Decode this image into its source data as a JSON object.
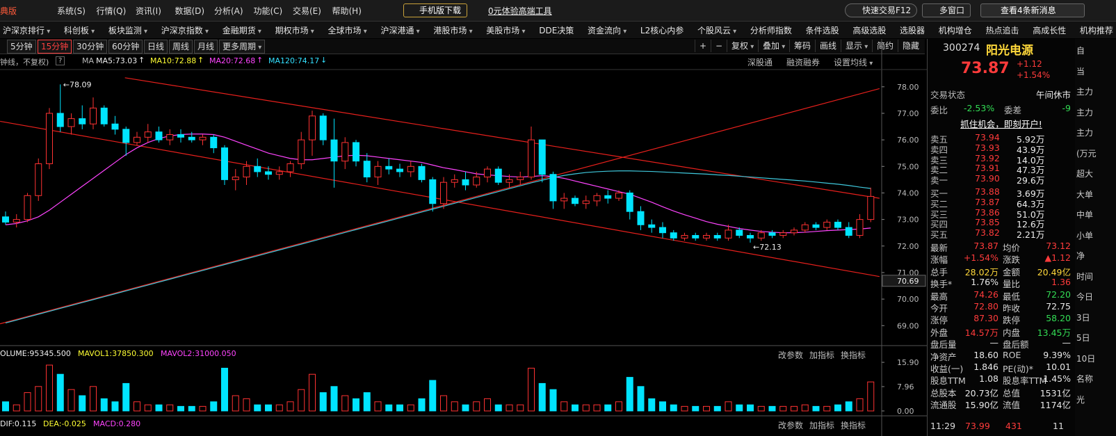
{
  "topbar": {
    "brand": "典版",
    "menus": [
      "系统(S)",
      "行情(Q)",
      "资讯(I)",
      "数据(D)",
      "分析(A)",
      "功能(C)",
      "交易(E)",
      "帮助(H)"
    ],
    "mobile": "手机版下载",
    "promo": "0元体验高端工具",
    "quick_trade": "快速交易F12",
    "multi_window": "多窗口",
    "messages": "查看4条新消息"
  },
  "nav": [
    {
      "text": "沪深京排行",
      "menu": true
    },
    {
      "text": "科创板",
      "menu": true
    },
    {
      "text": "板块监测",
      "menu": true
    },
    {
      "text": "沪深京指数",
      "menu": true
    },
    {
      "text": "金融期货",
      "menu": true
    },
    {
      "text": "期权市场",
      "menu": true
    },
    {
      "text": "全球市场",
      "menu": true
    },
    {
      "text": "沪深港通",
      "menu": true
    },
    {
      "text": "港股市场",
      "menu": true
    },
    {
      "text": "美股市场",
      "menu": true
    },
    {
      "text": "DDE决策",
      "menu": false
    },
    {
      "text": "资金流向",
      "menu": true
    },
    {
      "text": "L2核心内参",
      "menu": false
    },
    {
      "text": "个股风云",
      "menu": true
    },
    {
      "text": "分析师指数",
      "menu": false
    },
    {
      "text": "条件选股",
      "menu": false
    },
    {
      "text": "高级选股",
      "menu": false
    },
    {
      "text": "选股器",
      "menu": false
    },
    {
      "text": "机构增仓",
      "menu": false
    },
    {
      "text": "热点追击",
      "menu": false
    },
    {
      "text": "高成长性",
      "menu": false
    },
    {
      "text": "机构推荐",
      "menu": false
    }
  ],
  "toolbar": {
    "periods": [
      {
        "text": "5分钟",
        "menu": false
      },
      {
        "text": "15分钟",
        "menu": false
      },
      {
        "text": "30分钟",
        "menu": false
      },
      {
        "text": "60分钟",
        "menu": false
      },
      {
        "text": "日线",
        "menu": false
      },
      {
        "text": "周线",
        "menu": false
      },
      {
        "text": "月线",
        "menu": false
      },
      {
        "text": "更多周期",
        "menu": true
      }
    ],
    "active": 1,
    "tools": [
      {
        "text": "+",
        "menu": false
      },
      {
        "text": "−",
        "menu": false
      },
      {
        "text": "复权",
        "menu": true
      },
      {
        "text": "叠加",
        "menu": true
      },
      {
        "text": "筹码",
        "menu": false
      },
      {
        "text": "画线",
        "menu": false
      },
      {
        "text": "显示",
        "menu": true
      },
      {
        "text": "简约",
        "menu": false
      },
      {
        "text": "隐藏",
        "menu": false
      }
    ]
  },
  "indicator_bar": {
    "mode": "钟线，不复权)",
    "help": "?",
    "ma": "MA",
    "items": [
      {
        "text": "MA5:73.03",
        "color": "#f0f0f0",
        "arrow": "↑"
      },
      {
        "text": "MA10:72.88",
        "color": "#ffff33",
        "arrow": "↑"
      },
      {
        "text": "MA20:72.68",
        "color": "#ff44ff",
        "arrow": "↑"
      },
      {
        "text": "MA120:74.17",
        "color": "#33e0ff",
        "arrow": "↓"
      }
    ],
    "links": [
      {
        "text": "深股通",
        "menu": false
      },
      {
        "text": "融资融券",
        "menu": false
      },
      {
        "text": "设置均线",
        "menu": true
      }
    ]
  },
  "volume_bar": {
    "items": [
      {
        "text": "OLUME:95345.500",
        "color": "#f0f0f0"
      },
      {
        "text": "MAVOL1:37850.300",
        "color": "#ffff33"
      },
      {
        "text": "MAVOL2:31000.050",
        "color": "#ff44ff"
      }
    ],
    "links": [
      "改参数",
      "加指标",
      "换指标"
    ]
  },
  "macd_bar": {
    "items": [
      {
        "text": "DIF:0.115",
        "color": "#f0f0f0"
      },
      {
        "text": "DEA:-0.025",
        "color": "#ffff33"
      },
      {
        "text": "MACD:0.280",
        "color": "#ff44ff"
      }
    ],
    "links": [
      "改参数",
      "加指标",
      "换指标"
    ]
  },
  "chart_data": [
    {
      "type": "candlestick",
      "up_color": "#ff3232",
      "down_color": "#00e4ff",
      "ylim": [
        68.3,
        78.65
      ],
      "yticks": [
        {
          "value": 78,
          "label": "78.00"
        },
        {
          "value": 77,
          "label": "77.00"
        },
        {
          "value": 76,
          "label": "76.00"
        },
        {
          "value": 75,
          "label": "75.00"
        },
        {
          "value": 74,
          "label": "74.00"
        },
        {
          "value": 73,
          "label": "73.00"
        },
        {
          "value": 72,
          "label": "72.00"
        },
        {
          "value": 71,
          "label": "71.00"
        },
        {
          "value": 70,
          "label": "70.00"
        },
        {
          "value": 69,
          "label": "69.00"
        }
      ],
      "marker": 70.69,
      "ohlc": [
        [
          73.1,
          73.3,
          72.8,
          72.9
        ],
        [
          72.9,
          73.2,
          72.7,
          73.0
        ],
        [
          73.0,
          74.0,
          72.9,
          73.9
        ],
        [
          73.9,
          75.3,
          73.7,
          75.1
        ],
        [
          75.1,
          77.2,
          74.9,
          77.0
        ],
        [
          77.0,
          78.09,
          76.3,
          76.5
        ],
        [
          76.5,
          77.0,
          76.2,
          76.8
        ],
        [
          76.8,
          77.3,
          76.4,
          76.6
        ],
        [
          76.6,
          77.6,
          76.4,
          77.2
        ],
        [
          77.2,
          77.3,
          76.5,
          76.6
        ],
        [
          76.6,
          76.9,
          76.2,
          76.4
        ],
        [
          76.4,
          76.5,
          75.4,
          75.9
        ],
        [
          75.9,
          76.3,
          75.8,
          76.1
        ],
        [
          76.1,
          76.6,
          75.9,
          76.3
        ],
        [
          76.3,
          76.5,
          75.9,
          76.0
        ],
        [
          76.0,
          76.4,
          75.8,
          76.2
        ],
        [
          76.2,
          76.4,
          75.9,
          76.1
        ],
        [
          76.1,
          76.3,
          75.9,
          76.0
        ],
        [
          76.0,
          76.2,
          75.8,
          76.1
        ],
        [
          76.1,
          76.2,
          75.5,
          75.7
        ],
        [
          75.7,
          75.8,
          74.3,
          74.5
        ],
        [
          74.5,
          74.9,
          74.1,
          74.6
        ],
        [
          74.6,
          75.2,
          74.3,
          75.0
        ],
        [
          75.0,
          75.3,
          74.6,
          74.8
        ],
        [
          74.8,
          75.0,
          74.5,
          74.7
        ],
        [
          74.7,
          75.0,
          74.5,
          74.8
        ],
        [
          74.8,
          75.2,
          74.6,
          75.1
        ],
        [
          75.1,
          76.3,
          74.9,
          76.0
        ],
        [
          76.0,
          77.1,
          75.4,
          76.9
        ],
        [
          76.9,
          77.0,
          75.8,
          76.0
        ],
        [
          76.0,
          76.8,
          74.2,
          75.2
        ],
        [
          75.2,
          76.1,
          74.9,
          75.9
        ],
        [
          75.9,
          76.0,
          75.0,
          75.2
        ],
        [
          75.2,
          75.5,
          74.4,
          74.6
        ],
        [
          74.6,
          75.2,
          74.3,
          75.0
        ],
        [
          75.0,
          75.3,
          74.7,
          74.9
        ],
        [
          74.9,
          75.1,
          74.6,
          74.8
        ],
        [
          74.8,
          75.2,
          74.6,
          75.0
        ],
        [
          75.0,
          75.1,
          74.4,
          74.5
        ],
        [
          74.5,
          74.6,
          73.3,
          73.6
        ],
        [
          73.6,
          74.6,
          73.4,
          74.4
        ],
        [
          74.4,
          74.7,
          74.2,
          74.5
        ],
        [
          74.5,
          74.8,
          74.1,
          74.3
        ],
        [
          74.3,
          74.8,
          74.2,
          74.6
        ],
        [
          74.6,
          75.0,
          74.4,
          74.9
        ],
        [
          74.9,
          75.0,
          74.3,
          74.4
        ],
        [
          74.4,
          74.7,
          74.2,
          74.5
        ],
        [
          74.5,
          74.8,
          74.3,
          74.6
        ],
        [
          74.6,
          76.5,
          74.5,
          76.0
        ],
        [
          76.0,
          76.0,
          74.4,
          74.7
        ],
        [
          74.7,
          74.8,
          73.4,
          73.7
        ],
        [
          73.7,
          74.0,
          73.4,
          73.8
        ],
        [
          73.8,
          73.9,
          73.5,
          73.6
        ],
        [
          73.6,
          73.9,
          73.4,
          73.7
        ],
        [
          73.7,
          74.0,
          73.5,
          73.9
        ],
        [
          73.9,
          74.1,
          73.6,
          73.8
        ],
        [
          73.8,
          74.1,
          73.7,
          74.0
        ],
        [
          74.0,
          74.1,
          73.0,
          73.3
        ],
        [
          73.3,
          73.5,
          72.6,
          72.8
        ],
        [
          72.8,
          73.0,
          72.5,
          72.7
        ],
        [
          72.7,
          72.9,
          72.3,
          72.5
        ],
        [
          72.5,
          72.6,
          72.2,
          72.3
        ],
        [
          72.3,
          72.5,
          72.2,
          72.4
        ],
        [
          72.4,
          72.5,
          72.2,
          72.3
        ],
        [
          72.3,
          72.5,
          72.2,
          72.4
        ],
        [
          72.4,
          72.5,
          72.2,
          72.3
        ],
        [
          72.3,
          72.8,
          72.2,
          72.6
        ],
        [
          72.6,
          72.7,
          72.3,
          72.4
        ],
        [
          72.4,
          72.5,
          72.13,
          72.3
        ],
        [
          72.3,
          72.6,
          72.2,
          72.5
        ],
        [
          72.5,
          72.6,
          72.3,
          72.4
        ],
        [
          72.4,
          72.6,
          72.3,
          72.5
        ],
        [
          72.5,
          72.7,
          72.4,
          72.6
        ],
        [
          72.6,
          72.9,
          72.5,
          72.8
        ],
        [
          72.8,
          72.9,
          72.6,
          72.7
        ],
        [
          72.7,
          73.0,
          72.6,
          72.9
        ],
        [
          72.9,
          73.0,
          72.6,
          72.7
        ],
        [
          72.7,
          72.9,
          72.3,
          72.4
        ],
        [
          72.4,
          73.2,
          72.3,
          73.0
        ],
        [
          73.0,
          74.2,
          72.9,
          73.87
        ]
      ],
      "series": [
        {
          "color": "#ff44ff",
          "values": [
            72.8,
            72.85,
            72.95,
            73.1,
            73.35,
            73.65,
            73.95,
            74.25,
            74.55,
            74.85,
            75.15,
            75.45,
            75.7,
            75.9,
            76.05,
            76.15,
            76.2,
            76.22,
            76.22,
            76.2,
            76.1,
            75.95,
            75.8,
            75.65,
            75.5,
            75.4,
            75.3,
            75.25,
            75.25,
            75.3,
            75.35,
            75.4,
            75.42,
            75.4,
            75.35,
            75.3,
            75.25,
            75.2,
            75.15,
            75.05,
            74.95,
            74.88,
            74.8,
            74.72,
            74.68,
            74.65,
            74.62,
            74.6,
            74.62,
            74.65,
            74.62,
            74.55,
            74.45,
            74.35,
            74.25,
            74.15,
            74.05,
            73.95,
            73.8,
            73.65,
            73.48,
            73.32,
            73.18,
            73.05,
            72.92,
            72.82,
            72.74,
            72.66,
            72.6,
            72.55,
            72.52,
            72.5,
            72.5,
            72.52,
            72.55,
            72.58,
            72.6,
            72.62,
            72.64,
            72.68
          ]
        },
        {
          "color": "#3fc8dc",
          "values": [
            69.1,
            69.21,
            69.32,
            69.43,
            69.54,
            69.65,
            69.76,
            69.87,
            69.98,
            70.09,
            70.2,
            70.31,
            70.42,
            70.53,
            70.64,
            70.75,
            70.86,
            70.97,
            71.08,
            71.19,
            71.3,
            71.41,
            71.52,
            71.63,
            71.74,
            71.85,
            71.96,
            72.07,
            72.18,
            72.29,
            72.4,
            72.51,
            72.62,
            72.73,
            72.84,
            72.95,
            73.06,
            73.17,
            73.28,
            73.39,
            73.5,
            73.61,
            73.72,
            73.83,
            73.94,
            74.05,
            74.16,
            74.27,
            74.38,
            74.48,
            74.58,
            74.66,
            74.72,
            74.77,
            74.8,
            74.82,
            74.83,
            74.83,
            74.82,
            74.81,
            74.79,
            74.77,
            74.75,
            74.73,
            74.71,
            74.68,
            74.66,
            74.63,
            74.6,
            74.57,
            74.54,
            74.51,
            74.48,
            74.45,
            74.41,
            74.37,
            74.33,
            74.28,
            74.22,
            74.17
          ]
        }
      ],
      "trendline_color": "#e8201c",
      "trendlines": [
        {
          "x": [
            10.9,
            79.8
          ],
          "y": [
            78.34,
            73.8
          ]
        },
        {
          "x": [
            -0.5,
            79.8
          ],
          "y": [
            76.7,
            70.85
          ]
        },
        {
          "x": [
            -0.5,
            79.8
          ],
          "y": [
            69.07,
            77.93
          ]
        }
      ]
    },
    {
      "type": "bar",
      "ylim": [
        -1.6,
        16.6
      ],
      "yticks": [
        {
          "value": 15.9,
          "label": "15.90"
        },
        7.96,
        {
          "value": 0,
          "label": "0.00"
        }
      ],
      "values": [
        3,
        2,
        6,
        8,
        15,
        12,
        7,
        5,
        8,
        4,
        3,
        9,
        3,
        2,
        2,
        2,
        1.5,
        1.5,
        1.5,
        3,
        14,
        5,
        4,
        2,
        2,
        2,
        3,
        7,
        12,
        6,
        8,
        5,
        4,
        6,
        3,
        2,
        2,
        2,
        4,
        10,
        5,
        3,
        2,
        3,
        4,
        2,
        2,
        2,
        14,
        9,
        7,
        3,
        2,
        2,
        2,
        2,
        3,
        11,
        8,
        4,
        3,
        2,
        1.5,
        1.5,
        1.5,
        1.5,
        3,
        2,
        2,
        1.5,
        1.5,
        1.5,
        1.5,
        2,
        1.5,
        1.5,
        2,
        3,
        4,
        9.5
      ]
    }
  ],
  "quote": {
    "code": "300274",
    "name": "阳光电源",
    "price": "73.87",
    "change": "+1.12",
    "pct": "+1.54%",
    "status_label": "交易状态",
    "status": "午间休市",
    "ratio_label": "委比",
    "ratio": "-2.53%",
    "diff_label": "委差",
    "diff": "-9",
    "ad": "抓住机会，即刻开户!",
    "asks": [
      [
        "卖五",
        "73.94",
        "5.92万"
      ],
      [
        "卖四",
        "73.93",
        "43.9万"
      ],
      [
        "卖三",
        "73.92",
        "14.0万"
      ],
      [
        "卖二",
        "73.91",
        "47.3万"
      ],
      [
        "卖一",
        "73.90",
        "29.6万"
      ]
    ],
    "bids": [
      [
        "买一",
        "73.88",
        "3.69万"
      ],
      [
        "买二",
        "73.87",
        "64.3万"
      ],
      [
        "买三",
        "73.86",
        "51.0万"
      ],
      [
        "买四",
        "73.85",
        "12.6万"
      ],
      [
        "买五",
        "73.82",
        "2.21万"
      ]
    ],
    "stats": [
      [
        "最新",
        "73.87",
        "均价",
        "73.12"
      ],
      [
        "涨幅",
        "+1.54%",
        "涨跌",
        "▲1.12"
      ],
      [
        "总手",
        "28.02万",
        "金额",
        "20.49亿"
      ],
      [
        "换手*",
        "1.76%",
        "量比",
        "1.36"
      ],
      [
        "最高",
        "74.26",
        "最低",
        "72.20"
      ],
      [
        "今开",
        "72.80",
        "昨收",
        "72.75"
      ],
      [
        "涨停",
        "87.30",
        "跌停",
        "58.20"
      ],
      [
        "外盘",
        "14.57万",
        "内盘",
        "13.45万"
      ],
      [
        "盘后量",
        "—",
        "盘后额",
        "—"
      ],
      [
        "净资产",
        "18.60",
        "ROE",
        "9.39%"
      ],
      [
        "收益(一)",
        "1.846",
        "PE(动)*",
        "10.01"
      ],
      [
        "股息TTM",
        "1.08",
        "股息率TTM",
        "1.45%"
      ],
      [
        "总股本",
        "20.73亿",
        "总值",
        "1531亿"
      ],
      [
        "流通股",
        "15.90亿",
        "流值",
        "1174亿"
      ]
    ],
    "stat_colors": [
      [
        "r",
        "r"
      ],
      [
        "r",
        "r"
      ],
      [
        "y",
        "y"
      ],
      [
        "w",
        "r"
      ],
      [
        "r",
        "g"
      ],
      [
        "r",
        "w"
      ],
      [
        "r",
        "g"
      ],
      [
        "r",
        "g"
      ],
      [
        "w",
        "w"
      ],
      [
        "w",
        "w"
      ],
      [
        "w",
        "w"
      ],
      [
        "w",
        "w"
      ],
      [
        "w",
        "w"
      ],
      [
        "w",
        "w"
      ]
    ],
    "ticker": [
      "11:29",
      "73.99",
      "431",
      "11"
    ]
  },
  "side": [
    "自",
    "当",
    "主力",
    "主力",
    "主力",
    "(万元",
    "超大",
    "大单",
    "中单",
    "小单",
    "净",
    "时间",
    "今日",
    "3日",
    "5日",
    "10日",
    "名称",
    "光"
  ]
}
